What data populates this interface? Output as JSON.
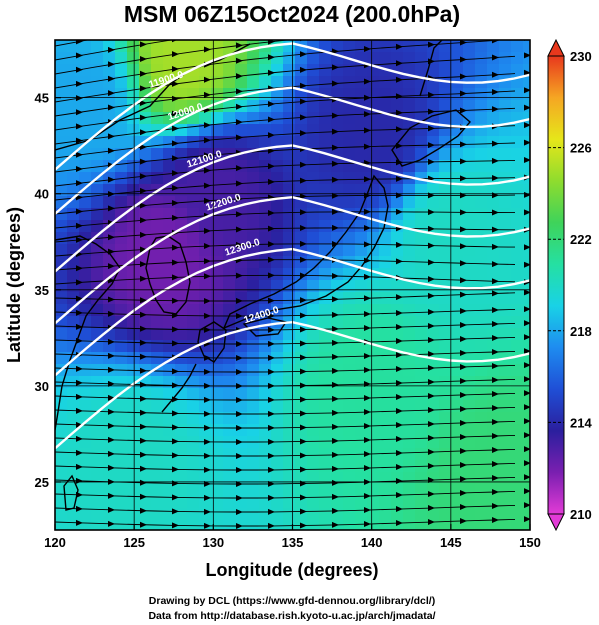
{
  "title": "MSM 06Z15Oct2024 (200.0hPa)",
  "xlabel": "Longitude (degrees)",
  "ylabel": "Latitude  (degrees)",
  "xticks": [
    "120",
    "125",
    "130",
    "135",
    "140",
    "145",
    "150"
  ],
  "yticks": [
    "25",
    "30",
    "35",
    "40",
    "45"
  ],
  "colorbar": {
    "ticks": [
      "210",
      "214",
      "218",
      "222",
      "226",
      "230"
    ],
    "min": 210,
    "max": 230,
    "palette": [
      "#e23bd6",
      "#7a1fb0",
      "#2b1f9e",
      "#1f4fd6",
      "#1e8cf0",
      "#19d2e6",
      "#25e0a2",
      "#3fd35a",
      "#8fdc2e",
      "#e6e61a",
      "#f5a623",
      "#e8381d"
    ]
  },
  "contour_labels": [
    "11900.0",
    "12000.0",
    "12100.0",
    "12200.0",
    "12300.0",
    "12400.0"
  ],
  "credit": {
    "line1": "Drawing by DCL (https://www.gfd-dennou.org/library/dcl/)",
    "line2": "Data from http://database.rish.kyoto-u.ac.jp/arch/jmadata/"
  },
  "chart_data": {
    "type": "heatmap",
    "title": "MSM 06Z15Oct2024 (200.0hPa)",
    "xlabel": "Longitude (degrees)",
    "ylabel": "Latitude  (degrees)",
    "xlim": [
      120,
      150
    ],
    "ylim": [
      22.5,
      48
    ],
    "colorbar_range": [
      210,
      230
    ],
    "shaded_field_approx": [
      {
        "lon": 128,
        "lat": 47,
        "value": 225
      },
      {
        "lon": 122,
        "lat": 45,
        "value": 218
      },
      {
        "lon": 130,
        "lat": 40,
        "value": 213
      },
      {
        "lon": 127,
        "lat": 37,
        "value": 212
      },
      {
        "lon": 140,
        "lat": 43,
        "value": 214
      },
      {
        "lon": 145,
        "lat": 38,
        "value": 220
      },
      {
        "lon": 140,
        "lat": 30,
        "value": 221
      },
      {
        "lon": 125,
        "lat": 26,
        "value": 220
      },
      {
        "lon": 148,
        "lat": 25,
        "value": 222
      }
    ],
    "contour_levels": [
      11900,
      12000,
      12100,
      12200,
      12300,
      12400
    ],
    "streamline_direction": "west-to-east",
    "grid": true
  }
}
